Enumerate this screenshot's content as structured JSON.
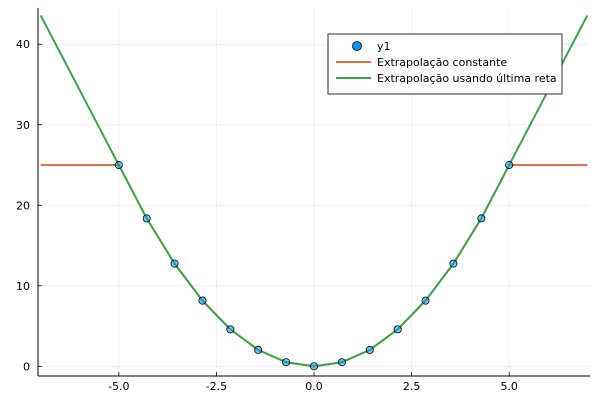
{
  "chart_data": {
    "type": "line",
    "title": "",
    "xlabel": "",
    "ylabel": "",
    "xlim": [
      -7.07,
      7.07
    ],
    "ylim": [
      -1.2,
      44.5
    ],
    "grid": true,
    "legend_position": "top-right",
    "x_ticks": [
      -5.0,
      -2.5,
      0.0,
      2.5,
      5.0
    ],
    "x_tick_labels": [
      "-5.0",
      "-2.5",
      "0.0",
      "2.5",
      "5.0"
    ],
    "y_ticks": [
      0,
      10,
      20,
      30,
      40
    ],
    "y_tick_labels": [
      "0",
      "10",
      "20",
      "30",
      "40"
    ],
    "series": [
      {
        "name": "y1",
        "kind": "scatter",
        "color": "#009af9",
        "x": [
          -5.0,
          -4.286,
          -3.571,
          -2.857,
          -2.143,
          -1.429,
          -0.714,
          0.0,
          0.714,
          1.429,
          2.143,
          2.857,
          3.571,
          4.286,
          5.0
        ],
        "y": [
          25.0,
          18.37,
          12.76,
          8.16,
          4.59,
          2.04,
          0.51,
          0.0,
          0.51,
          2.04,
          4.59,
          8.16,
          12.76,
          18.37,
          25.0
        ]
      },
      {
        "name": "Extrapolação constante",
        "kind": "line",
        "color": "#e26f46",
        "x": [
          -7.0,
          -5.0,
          -4.286,
          -3.571,
          -2.857,
          -2.143,
          -1.429,
          -0.714,
          0.0,
          0.714,
          1.429,
          2.143,
          2.857,
          3.571,
          4.286,
          5.0,
          7.0
        ],
        "y": [
          25.0,
          25.0,
          18.37,
          12.76,
          8.16,
          4.59,
          2.04,
          0.51,
          0.0,
          0.51,
          2.04,
          4.59,
          8.16,
          12.76,
          18.37,
          25.0,
          25.0
        ]
      },
      {
        "name": "Extrapolação usando última reta",
        "kind": "line",
        "color": "#3da44d",
        "x": [
          -7.0,
          -5.0,
          -4.286,
          -3.571,
          -2.857,
          -2.143,
          -1.429,
          -0.714,
          0.0,
          0.714,
          1.429,
          2.143,
          2.857,
          3.571,
          4.286,
          5.0,
          7.0
        ],
        "y": [
          43.57,
          25.0,
          18.37,
          12.76,
          8.16,
          4.59,
          2.04,
          0.51,
          0.0,
          0.51,
          2.04,
          4.59,
          8.16,
          12.76,
          18.37,
          25.0,
          43.57
        ]
      }
    ]
  }
}
